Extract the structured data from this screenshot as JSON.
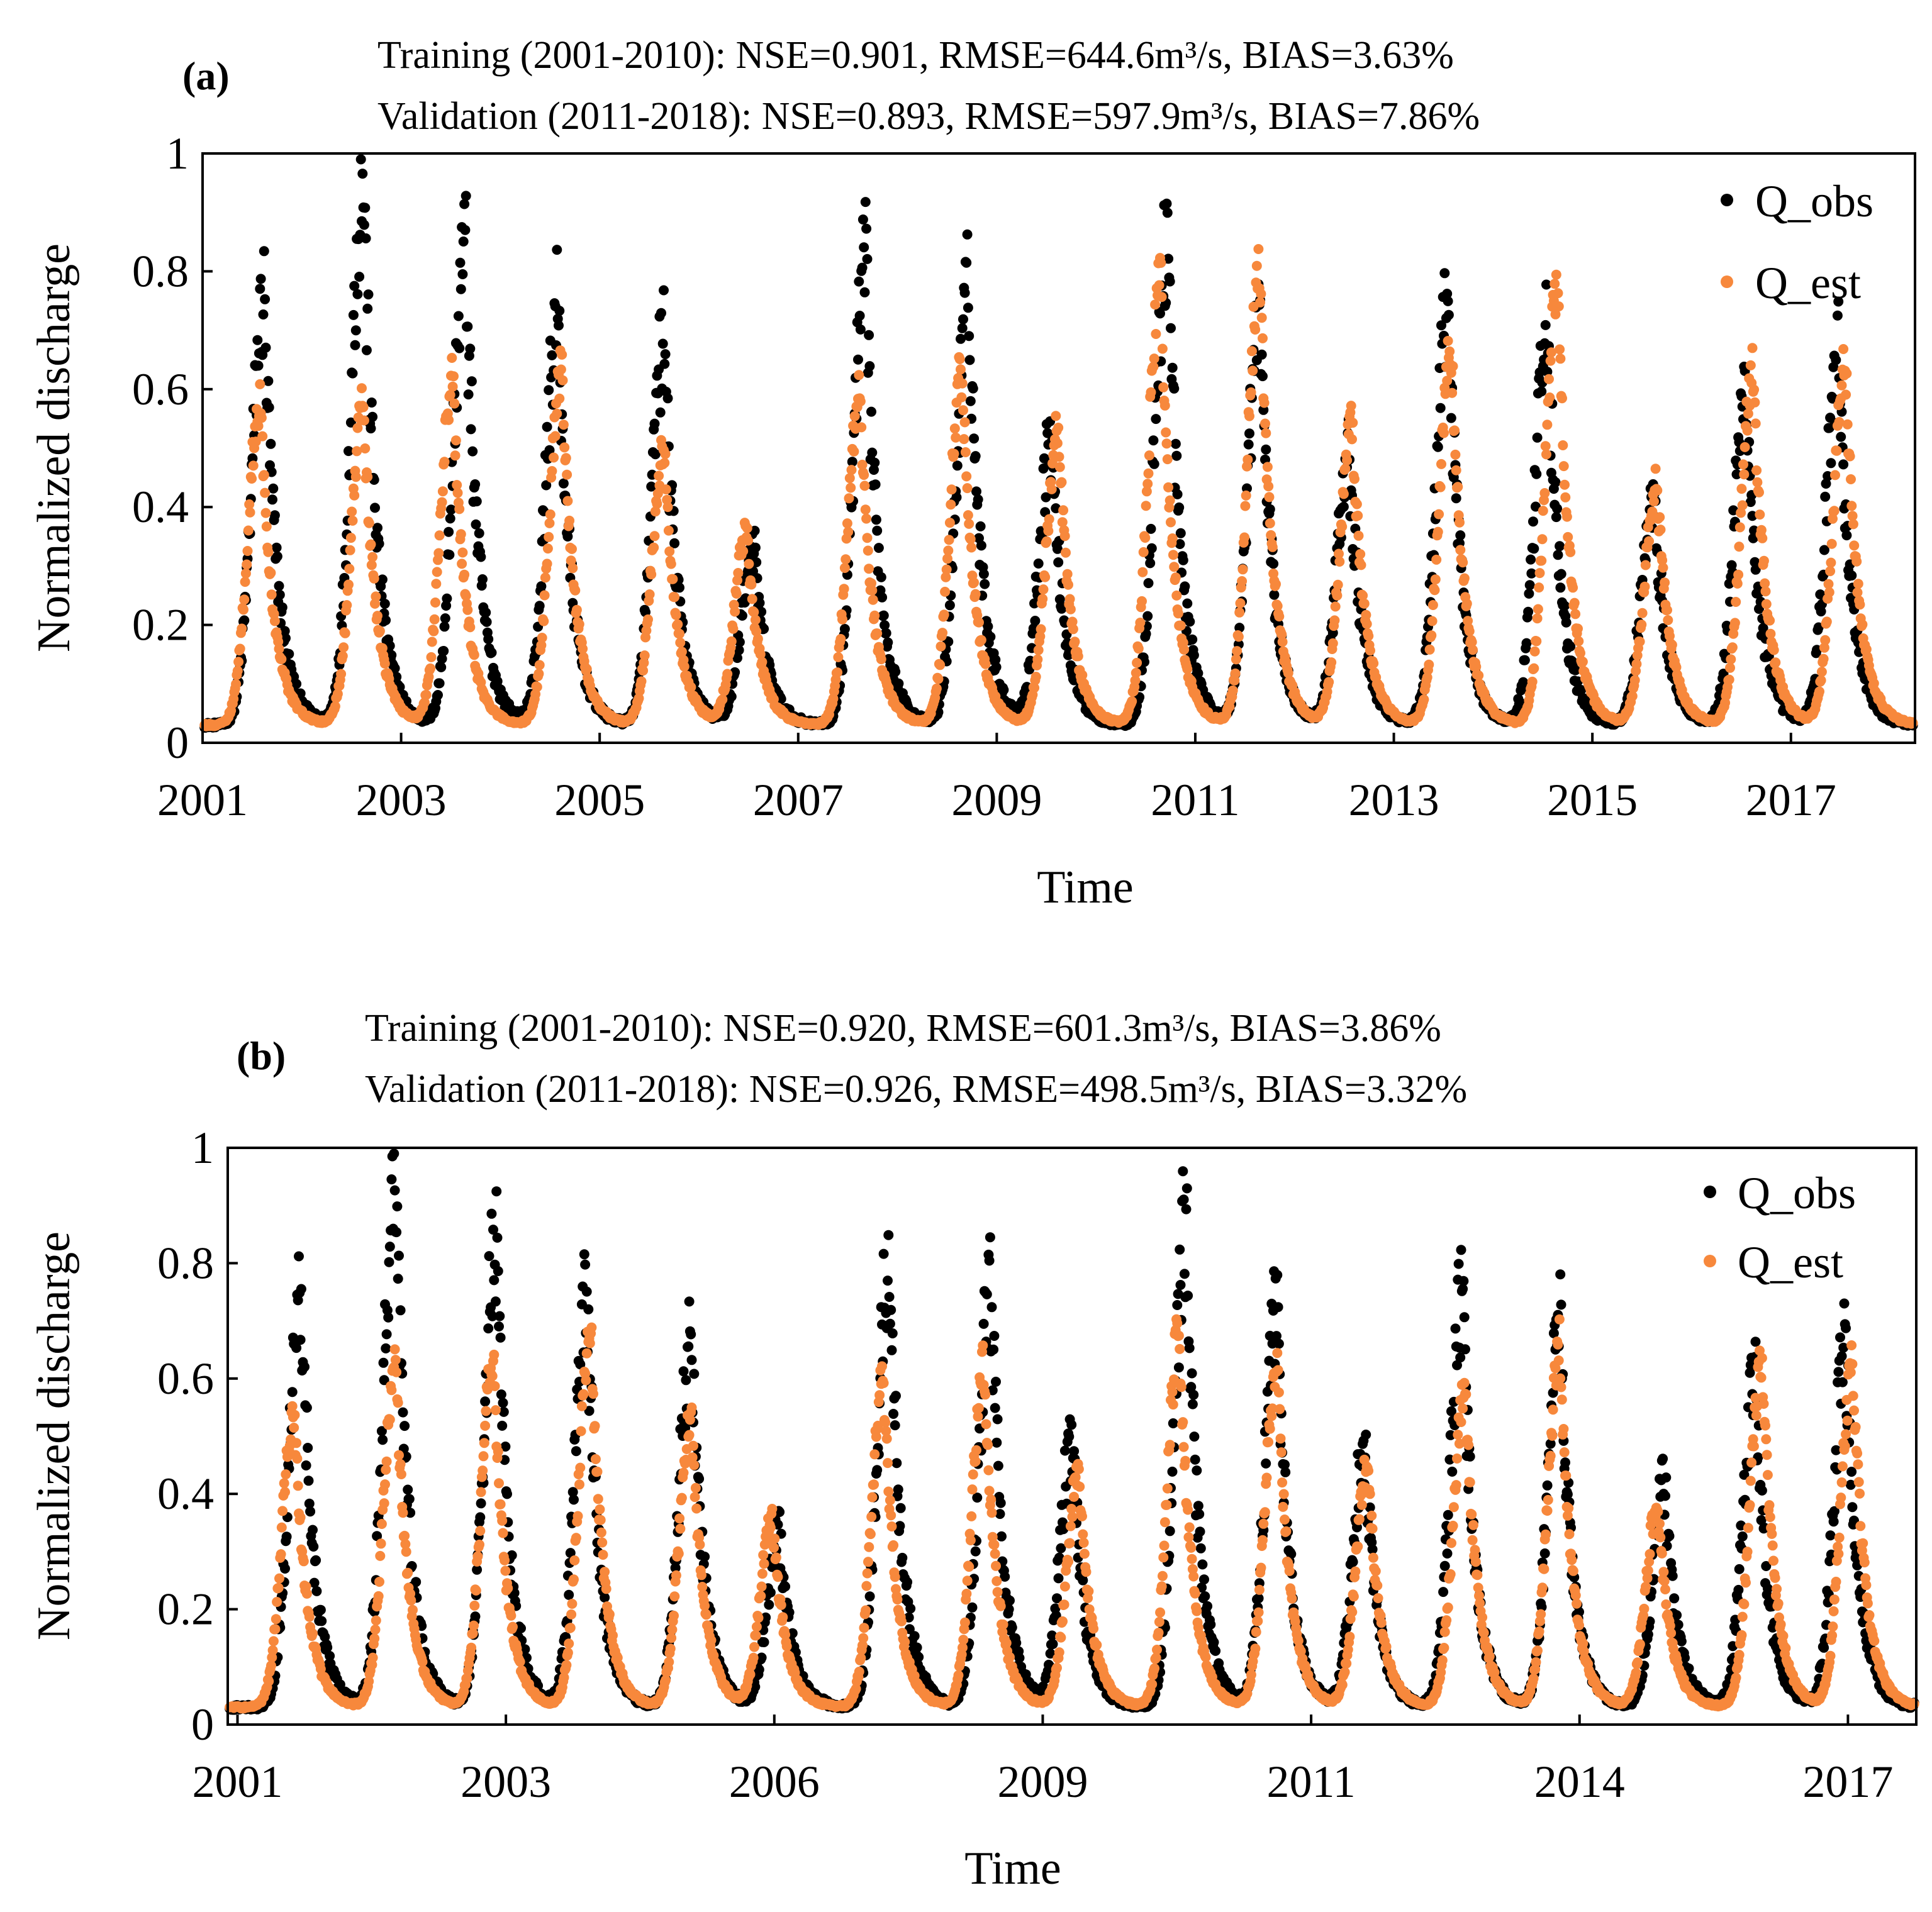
{
  "colors": {
    "observed": "#000000",
    "estimated": "#f7883c",
    "frame": "#000000",
    "background": "#ffffff"
  },
  "chart_data": [
    {
      "type": "scatter",
      "panel_label": "(a)",
      "header_lines": [
        "Training (2001-2010): NSE=0.901, RMSE=644.6m³/s, BIAS=3.63%",
        "Validation (2011-2018): NSE=0.893, RMSE=597.9m³/s, BIAS=7.86%"
      ],
      "xlabel": "Time",
      "ylabel": "Normalized discharge",
      "xlim": [
        2001.0,
        2018.25
      ],
      "ylim": [
        0,
        1
      ],
      "x_ticks": [
        2001,
        2003,
        2005,
        2007,
        2009,
        2011,
        2013,
        2015,
        2017
      ],
      "y_ticks": [
        0,
        0.2,
        0.4,
        0.6,
        0.8,
        1
      ],
      "y_tick_labels": [
        "0",
        "0.2",
        "0.4",
        "0.6",
        "0.8",
        "1"
      ],
      "legend": {
        "position": "top-right",
        "entries": [
          "Q_obs",
          "Q_est"
        ]
      },
      "baseline": 0.03,
      "series": [
        {
          "name": "Q_obs",
          "peaks": [
            {
              "t": 2001.62,
              "v": 0.75
            },
            {
              "t": 2002.62,
              "v": 0.96
            },
            {
              "t": 2003.65,
              "v": 0.84
            },
            {
              "t": 2004.58,
              "v": 0.73
            },
            {
              "t": 2005.65,
              "v": 0.68
            },
            {
              "t": 2006.55,
              "v": 0.34
            },
            {
              "t": 2007.68,
              "v": 0.8
            },
            {
              "t": 2008.72,
              "v": 0.76
            },
            {
              "t": 2009.55,
              "v": 0.52
            },
            {
              "t": 2010.72,
              "v": 0.87
            },
            {
              "t": 2011.65,
              "v": 0.73
            },
            {
              "t": 2012.55,
              "v": 0.49
            },
            {
              "t": 2013.55,
              "v": 0.73
            },
            {
              "t": 2014.55,
              "v": 0.7
            },
            {
              "t": 2015.62,
              "v": 0.43
            },
            {
              "t": 2016.55,
              "v": 0.6
            },
            {
              "t": 2017.48,
              "v": 0.66
            }
          ]
        },
        {
          "name": "Q_est",
          "peaks": [
            {
              "t": 2001.58,
              "v": 0.58
            },
            {
              "t": 2002.62,
              "v": 0.57
            },
            {
              "t": 2003.52,
              "v": 0.62
            },
            {
              "t": 2004.62,
              "v": 0.64
            },
            {
              "t": 2005.65,
              "v": 0.5
            },
            {
              "t": 2006.48,
              "v": 0.36
            },
            {
              "t": 2007.62,
              "v": 0.59
            },
            {
              "t": 2008.65,
              "v": 0.63
            },
            {
              "t": 2009.62,
              "v": 0.53
            },
            {
              "t": 2010.65,
              "v": 0.79
            },
            {
              "t": 2011.65,
              "v": 0.8
            },
            {
              "t": 2012.58,
              "v": 0.54
            },
            {
              "t": 2013.58,
              "v": 0.67
            },
            {
              "t": 2014.65,
              "v": 0.77
            },
            {
              "t": 2015.65,
              "v": 0.44
            },
            {
              "t": 2016.62,
              "v": 0.63
            },
            {
              "t": 2017.55,
              "v": 0.64
            }
          ]
        }
      ]
    },
    {
      "type": "scatter",
      "panel_label": "(b)",
      "header_lines": [
        "Training (2001-2010): NSE=0.920, RMSE=601.3m³/s, BIAS=3.86%",
        "Validation (2011-2018): NSE=0.926, RMSE=498.5m³/s, BIAS=3.32%"
      ],
      "xlabel": "Time",
      "ylabel": "Normalized discharge",
      "xlim": [
        2000.9,
        2018.2
      ],
      "ylim": [
        0,
        1
      ],
      "x_ticks": [
        2001,
        2003,
        2006,
        2009,
        2011,
        2014,
        2017
      ],
      "x_tick_positions": [
        2001.0,
        2003.75,
        2006.5,
        2009.25,
        2012.0,
        2014.75,
        2017.5
      ],
      "y_ticks": [
        0,
        0.2,
        0.4,
        0.6,
        0.8,
        1
      ],
      "y_tick_labels": [
        "0",
        "0.2",
        "0.4",
        "0.6",
        "0.8",
        "1"
      ],
      "legend": {
        "position": "top-right",
        "entries": [
          "Q_obs",
          "Q_est"
        ]
      },
      "baseline": 0.03,
      "series": [
        {
          "name": "Q_obs",
          "peaks": [
            {
              "t": 2001.65,
              "v": 0.75
            },
            {
              "t": 2002.62,
              "v": 0.96
            },
            {
              "t": 2003.65,
              "v": 0.84
            },
            {
              "t": 2004.58,
              "v": 0.73
            },
            {
              "t": 2005.65,
              "v": 0.68
            },
            {
              "t": 2006.55,
              "v": 0.34
            },
            {
              "t": 2007.68,
              "v": 0.8
            },
            {
              "t": 2008.72,
              "v": 0.76
            },
            {
              "t": 2009.55,
              "v": 0.49
            },
            {
              "t": 2010.72,
              "v": 0.87
            },
            {
              "t": 2011.65,
              "v": 0.73
            },
            {
              "t": 2012.55,
              "v": 0.49
            },
            {
              "t": 2013.55,
              "v": 0.73
            },
            {
              "t": 2014.55,
              "v": 0.7
            },
            {
              "t": 2015.62,
              "v": 0.42
            },
            {
              "t": 2016.55,
              "v": 0.6
            },
            {
              "t": 2017.48,
              "v": 0.66
            }
          ]
        },
        {
          "name": "Q_est",
          "peaks": [
            {
              "t": 2001.58,
              "v": 0.55
            },
            {
              "t": 2002.62,
              "v": 0.63
            },
            {
              "t": 2003.62,
              "v": 0.64
            },
            {
              "t": 2004.62,
              "v": 0.69
            },
            {
              "t": 2005.65,
              "v": 0.54
            },
            {
              "t": 2006.48,
              "v": 0.36
            },
            {
              "t": 2007.62,
              "v": 0.6
            },
            {
              "t": 2008.65,
              "v": 0.63
            },
            {
              "t": 2009.62,
              "v": 0.44
            },
            {
              "t": 2010.65,
              "v": 0.68
            },
            {
              "t": 2011.65,
              "v": 0.63
            },
            {
              "t": 2012.58,
              "v": 0.45
            },
            {
              "t": 2013.58,
              "v": 0.58
            },
            {
              "t": 2014.55,
              "v": 0.66
            },
            {
              "t": 2015.55,
              "v": 0.38
            },
            {
              "t": 2016.62,
              "v": 0.64
            },
            {
              "t": 2017.55,
              "v": 0.62
            }
          ]
        }
      ]
    }
  ]
}
